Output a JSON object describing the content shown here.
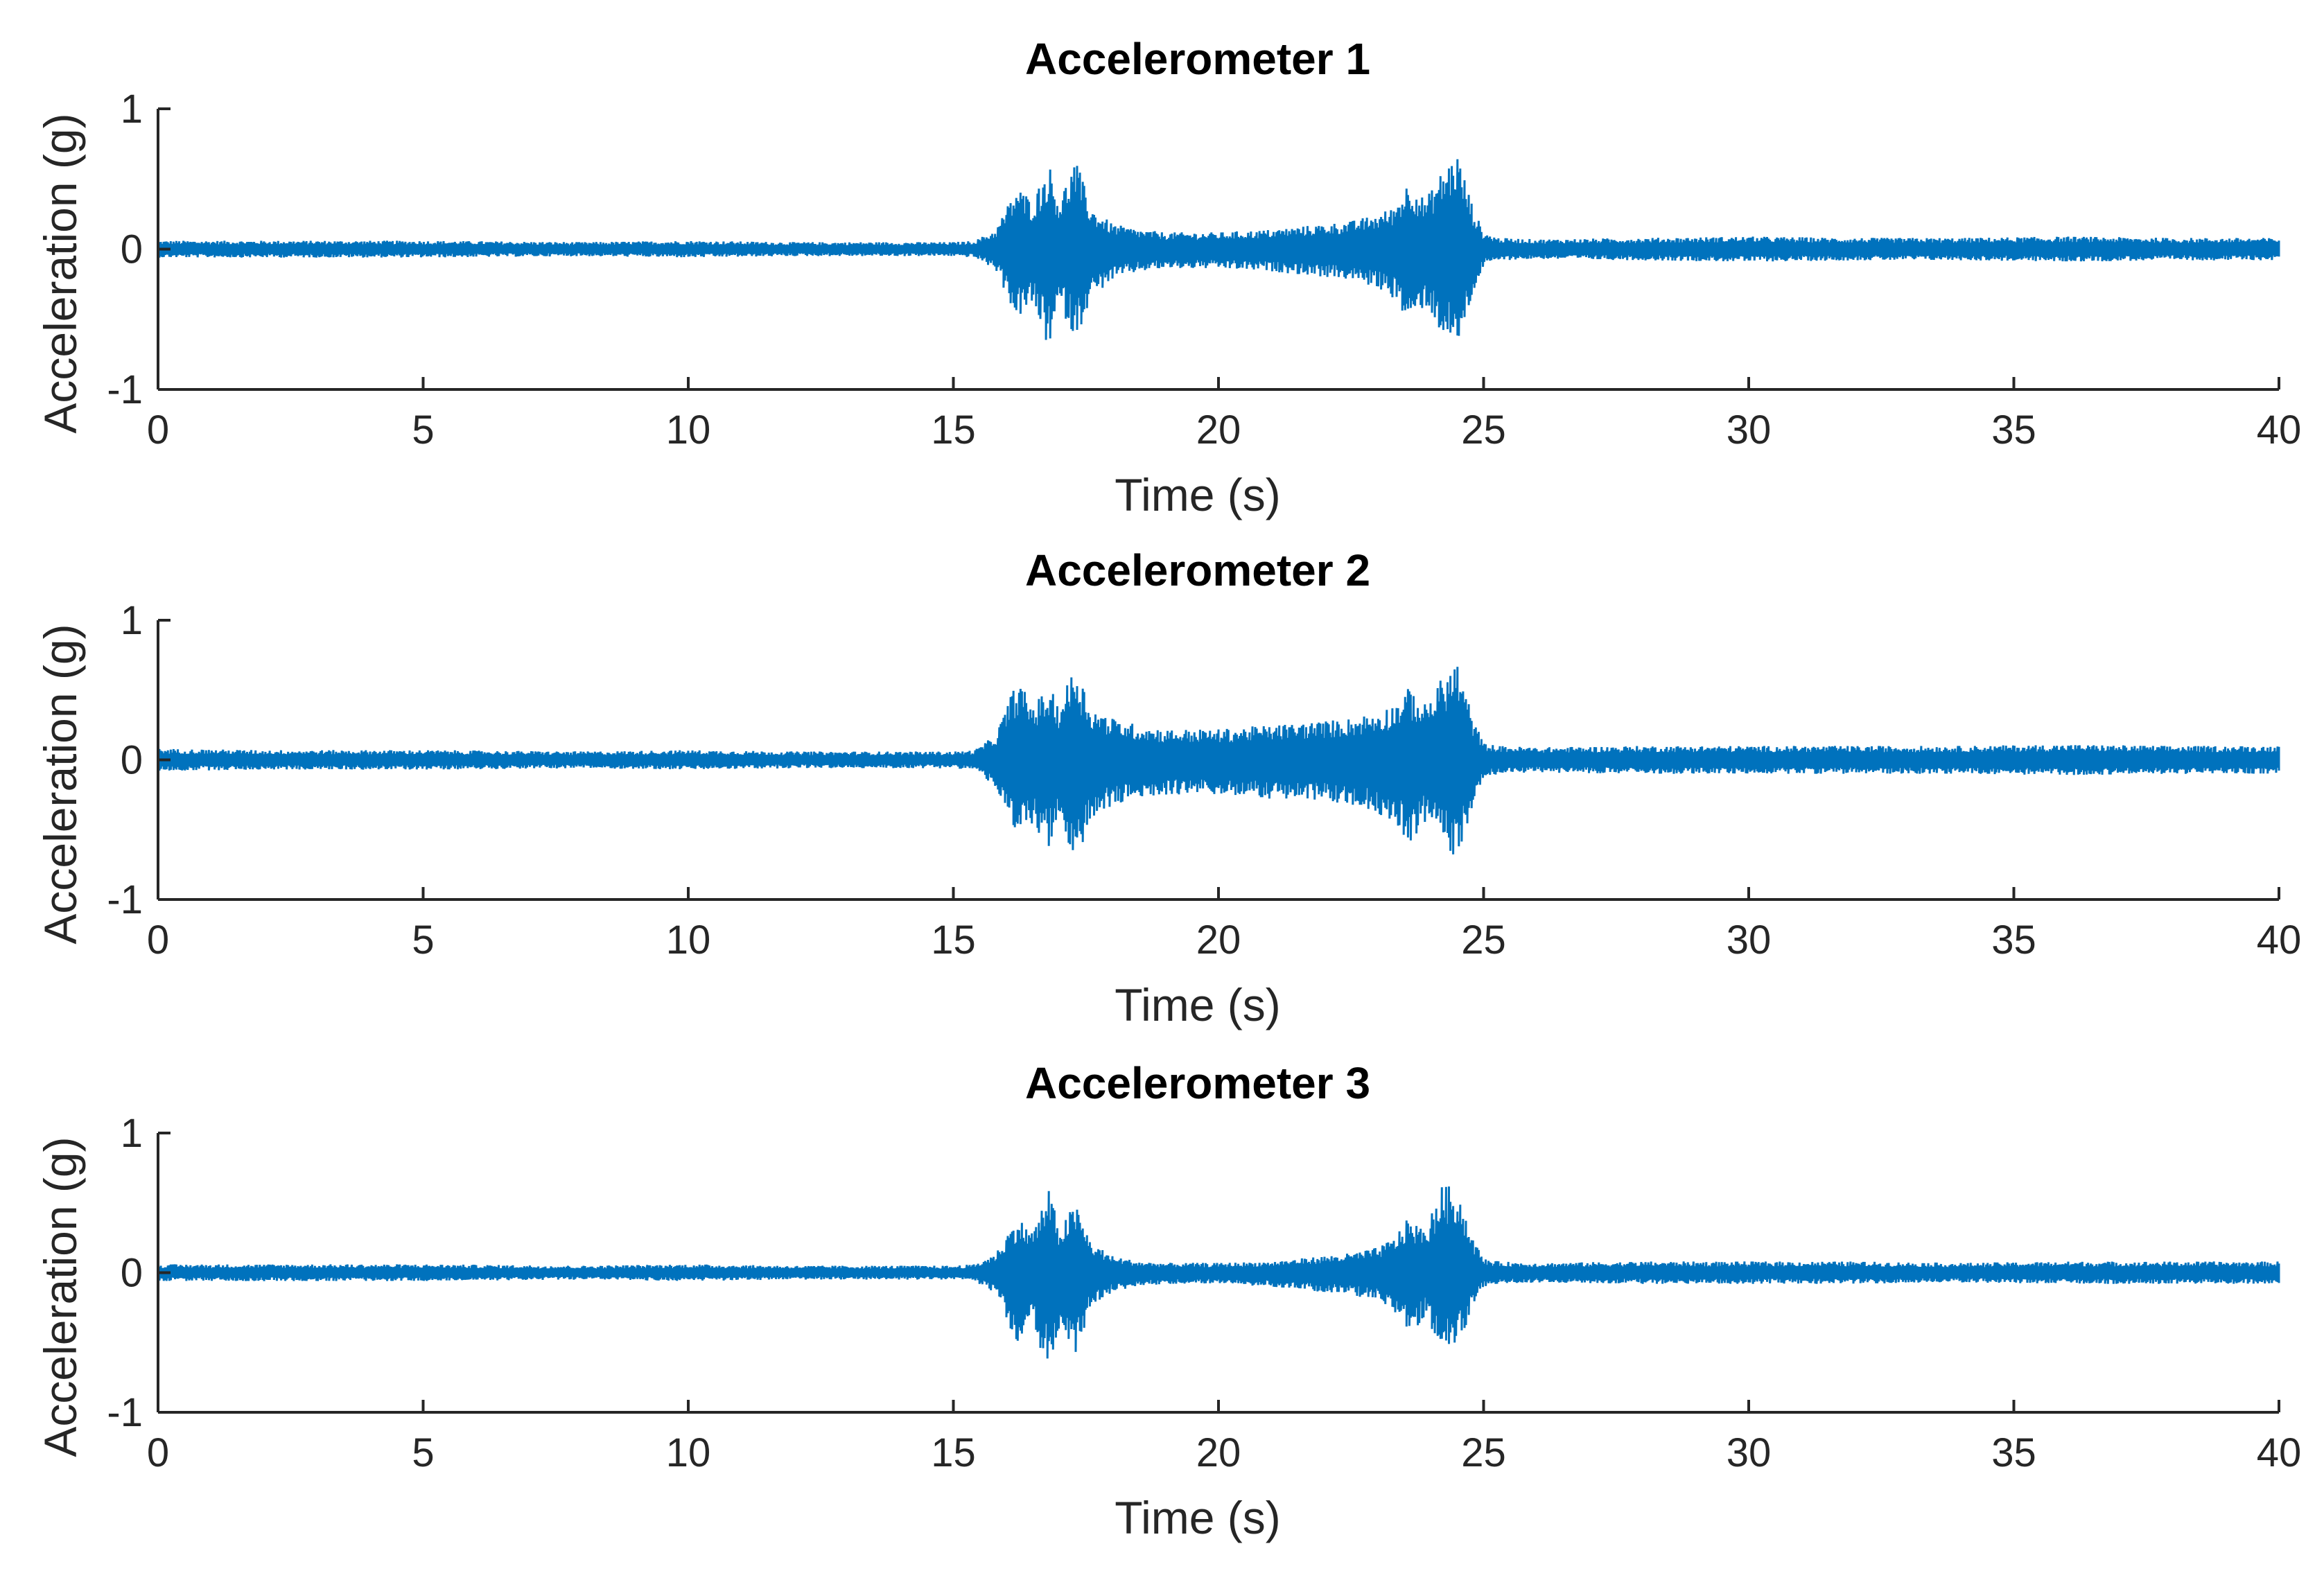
{
  "chart_data": [
    {
      "type": "line",
      "title": "Accelerometer 1",
      "xlabel": "Time (s)",
      "ylabel": "Acceleration (g)",
      "xlim": [
        0,
        40
      ],
      "ylim": [
        -1,
        1
      ],
      "xticks": [
        "0",
        "5",
        "10",
        "15",
        "20",
        "25",
        "30",
        "35",
        "40"
      ],
      "yticks": [
        "-1",
        "0",
        "1"
      ],
      "grid": false,
      "series": [
        {
          "color": "#0072bd",
          "envelope": {
            "t": [
              0,
              2,
              5,
              8,
              10,
              12,
              14,
              15,
              15.4,
              15.8,
              16.2,
              16.5,
              16.8,
              17.0,
              17.3,
              17.6,
              18.0,
              18.5,
              19,
              20,
              21,
              22,
              22.5,
              23,
              23.3,
              23.6,
              23.9,
              24.2,
              24.5,
              24.8,
              25.0,
              25.3,
              26,
              28,
              30,
              32,
              34,
              36,
              38,
              40
            ],
            "max": [
              0.06,
              0.06,
              0.06,
              0.05,
              0.06,
              0.05,
              0.05,
              0.05,
              0.06,
              0.14,
              0.45,
              0.35,
              0.62,
              0.35,
              0.65,
              0.3,
              0.18,
              0.14,
              0.12,
              0.12,
              0.14,
              0.18,
              0.2,
              0.25,
              0.3,
              0.5,
              0.35,
              0.55,
              0.7,
              0.3,
              0.12,
              0.08,
              0.07,
              0.08,
              0.09,
              0.08,
              0.08,
              0.09,
              0.08,
              0.08
            ],
            "min": [
              -0.06,
              -0.06,
              -0.06,
              -0.05,
              -0.06,
              -0.05,
              -0.05,
              -0.05,
              -0.06,
              -0.15,
              -0.5,
              -0.4,
              -0.72,
              -0.4,
              -0.65,
              -0.35,
              -0.22,
              -0.16,
              -0.14,
              -0.14,
              -0.16,
              -0.2,
              -0.22,
              -0.28,
              -0.35,
              -0.55,
              -0.4,
              -0.6,
              -0.72,
              -0.32,
              -0.12,
              -0.08,
              -0.07,
              -0.08,
              -0.09,
              -0.08,
              -0.08,
              -0.09,
              -0.08,
              -0.08
            ]
          }
        }
      ]
    },
    {
      "type": "line",
      "title": "Accelerometer 2",
      "xlabel": "Time (s)",
      "ylabel": "Acceleration (g)",
      "xlim": [
        0,
        40
      ],
      "ylim": [
        -1,
        1
      ],
      "xticks": [
        "0",
        "5",
        "10",
        "15",
        "20",
        "25",
        "30",
        "35",
        "40"
      ],
      "yticks": [
        "-1",
        "0",
        "1"
      ],
      "grid": false,
      "series": [
        {
          "color": "#0072bd",
          "envelope": {
            "t": [
              0,
              2,
              5,
              8,
              10,
              12,
              14,
              15,
              15.4,
              15.8,
              16.2,
              16.5,
              16.8,
              17.0,
              17.3,
              17.6,
              18.0,
              18.5,
              19,
              20,
              21,
              22,
              22.5,
              23,
              23.3,
              23.6,
              23.9,
              24.2,
              24.5,
              24.8,
              25.0,
              25.3,
              26,
              28,
              30,
              32,
              34,
              36,
              38,
              40
            ],
            "max": [
              0.08,
              0.07,
              0.07,
              0.06,
              0.07,
              0.06,
              0.06,
              0.06,
              0.07,
              0.18,
              0.58,
              0.4,
              0.52,
              0.4,
              0.7,
              0.38,
              0.3,
              0.25,
              0.22,
              0.22,
              0.25,
              0.28,
              0.3,
              0.35,
              0.4,
              0.52,
              0.4,
              0.58,
              0.72,
              0.3,
              0.12,
              0.1,
              0.09,
              0.1,
              0.1,
              0.1,
              0.1,
              0.11,
              0.1,
              0.1
            ],
            "min": [
              -0.08,
              -0.07,
              -0.07,
              -0.06,
              -0.07,
              -0.06,
              -0.06,
              -0.06,
              -0.07,
              -0.2,
              -0.6,
              -0.45,
              -0.65,
              -0.45,
              -0.85,
              -0.42,
              -0.34,
              -0.28,
              -0.25,
              -0.25,
              -0.28,
              -0.3,
              -0.33,
              -0.38,
              -0.45,
              -0.6,
              -0.45,
              -0.6,
              -0.72,
              -0.32,
              -0.12,
              -0.1,
              -0.09,
              -0.1,
              -0.1,
              -0.1,
              -0.1,
              -0.11,
              -0.1,
              -0.1
            ]
          }
        }
      ]
    },
    {
      "type": "line",
      "title": "Accelerometer 3",
      "xlabel": "Time (s)",
      "ylabel": "Acceleration (g)",
      "xlim": [
        0,
        40
      ],
      "ylim": [
        -1,
        1
      ],
      "xticks": [
        "0",
        "5",
        "10",
        "15",
        "20",
        "25",
        "30",
        "35",
        "40"
      ],
      "yticks": [
        "-1",
        "0",
        "1"
      ],
      "grid": false,
      "series": [
        {
          "color": "#0072bd",
          "envelope": {
            "t": [
              0,
              2,
              5,
              8,
              10,
              12,
              14,
              15,
              15.4,
              15.8,
              16.2,
              16.5,
              16.8,
              17.0,
              17.3,
              17.6,
              18.0,
              18.5,
              19,
              20,
              21,
              22,
              22.5,
              23,
              23.3,
              23.6,
              23.9,
              24.2,
              24.5,
              24.8,
              25.0,
              25.3,
              26,
              28,
              30,
              32,
              34,
              36,
              38,
              40
            ],
            "max": [
              0.06,
              0.06,
              0.06,
              0.05,
              0.06,
              0.05,
              0.05,
              0.05,
              0.06,
              0.14,
              0.4,
              0.3,
              0.6,
              0.32,
              0.5,
              0.22,
              0.12,
              0.08,
              0.07,
              0.07,
              0.08,
              0.12,
              0.14,
              0.18,
              0.25,
              0.4,
              0.3,
              0.62,
              0.62,
              0.25,
              0.1,
              0.08,
              0.07,
              0.08,
              0.08,
              0.08,
              0.07,
              0.08,
              0.08,
              0.08
            ],
            "min": [
              -0.06,
              -0.06,
              -0.06,
              -0.05,
              -0.06,
              -0.05,
              -0.05,
              -0.05,
              -0.06,
              -0.15,
              -0.52,
              -0.38,
              -0.72,
              -0.4,
              -0.6,
              -0.25,
              -0.14,
              -0.1,
              -0.08,
              -0.08,
              -0.1,
              -0.14,
              -0.16,
              -0.2,
              -0.28,
              -0.45,
              -0.32,
              -0.62,
              -0.55,
              -0.25,
              -0.1,
              -0.08,
              -0.07,
              -0.08,
              -0.08,
              -0.08,
              -0.07,
              -0.08,
              -0.08,
              -0.08
            ]
          }
        }
      ]
    }
  ]
}
